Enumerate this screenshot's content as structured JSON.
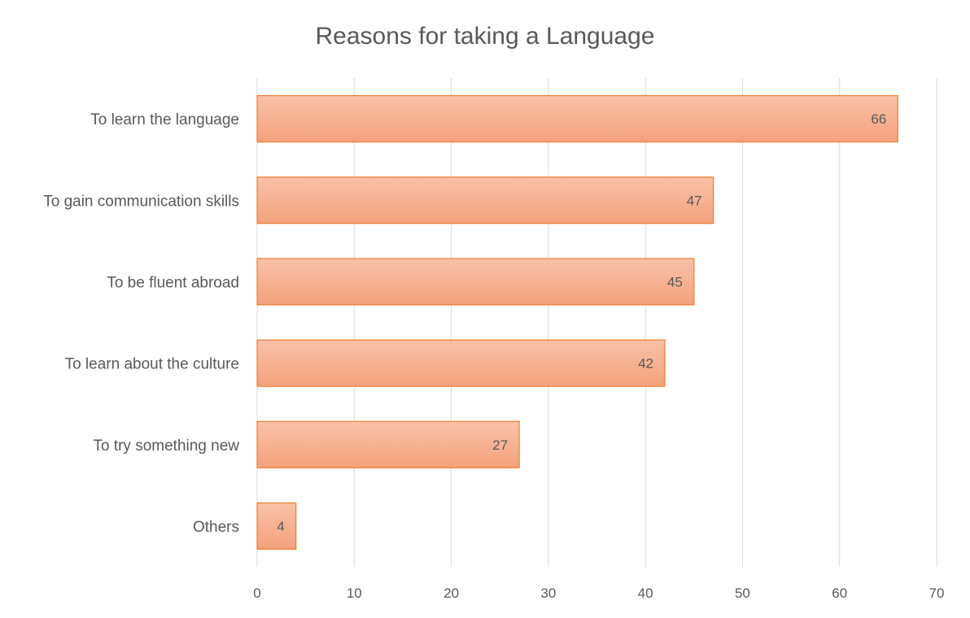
{
  "chart_data": {
    "type": "bar",
    "orientation": "horizontal",
    "title": "Reasons for taking a Language",
    "categories": [
      "To learn the language",
      "To gain communication skills",
      "To be fluent abroad",
      "To learn about the culture",
      "To try something new",
      "Others"
    ],
    "values": [
      66,
      47,
      45,
      42,
      27,
      4
    ],
    "xlim": [
      0,
      70
    ],
    "xticks": [
      0,
      10,
      20,
      30,
      40,
      50,
      60,
      70
    ],
    "xtick_labels": [
      "0",
      "10",
      "20",
      "30",
      "40",
      "50",
      "60",
      "70"
    ],
    "xlabel": "",
    "ylabel": "",
    "grid": "vertical",
    "legend": "none",
    "data_labels": "inside-end"
  },
  "colors": {
    "bar_fill_top": "#f8c1a6",
    "bar_fill_bottom": "#f4a27c",
    "bar_stroke": "#ed7d31",
    "text": "#595959",
    "grid": "#d9d9d9"
  }
}
